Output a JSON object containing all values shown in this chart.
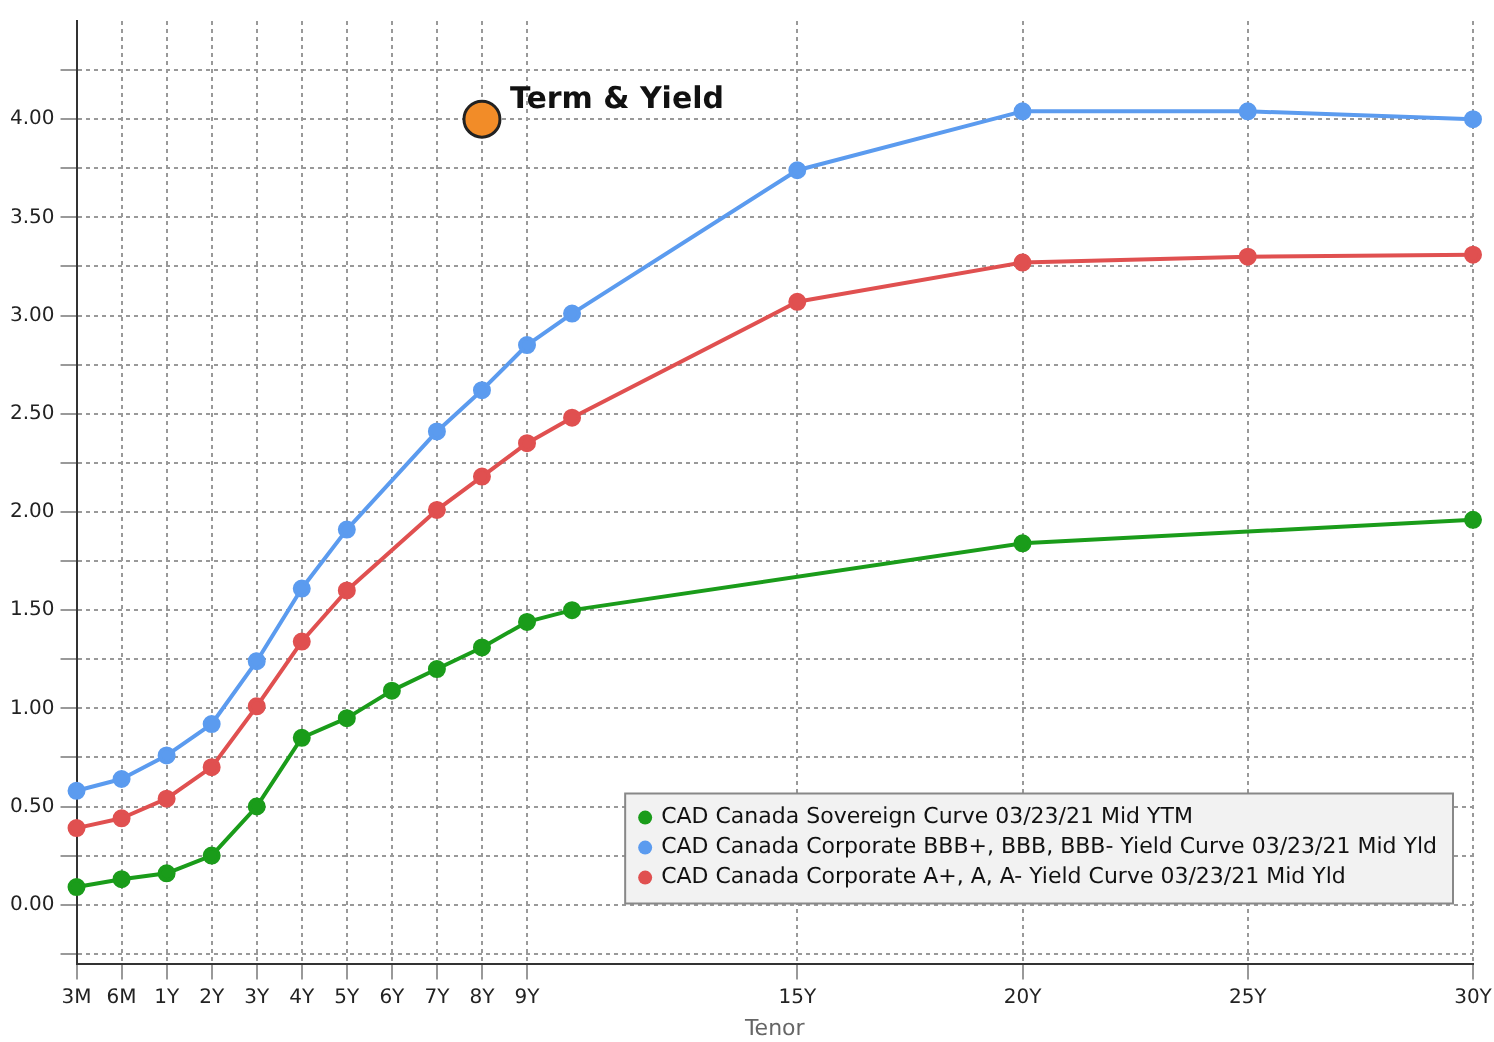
{
  "chart_data": {
    "type": "line",
    "xlabel": "Tenor",
    "categories": [
      "3M",
      "6M",
      "1Y",
      "2Y",
      "3Y",
      "4Y",
      "5Y",
      "6Y",
      "7Y",
      "8Y",
      "9Y",
      null,
      null,
      null,
      null,
      null,
      "15Y",
      null,
      null,
      null,
      null,
      "20Y",
      null,
      null,
      null,
      null,
      "25Y",
      null,
      null,
      null,
      null,
      "30Y"
    ],
    "series": [
      {
        "name": "CAD Canada Sovereign Curve 03/23/21 Mid YTM",
        "color": "#1a9c1a",
        "values": [
          0.09,
          0.13,
          0.16,
          0.25,
          0.5,
          0.85,
          0.95,
          1.09,
          1.2,
          1.31,
          1.44,
          1.5,
          null,
          null,
          null,
          null,
          null,
          null,
          null,
          null,
          null,
          1.84,
          null,
          null,
          null,
          null,
          null,
          null,
          null,
          null,
          null,
          1.96
        ]
      },
      {
        "name": "CAD Canada Corporate BBB+, BBB, BBB- Yield Curve 03/23/21 Mid Yld",
        "color": "#5b9bef",
        "values": [
          0.58,
          0.64,
          0.76,
          0.92,
          1.24,
          1.61,
          1.91,
          null,
          2.41,
          2.62,
          2.85,
          3.01,
          null,
          null,
          null,
          null,
          3.74,
          null,
          null,
          null,
          null,
          4.04,
          null,
          null,
          null,
          null,
          4.04,
          null,
          null,
          null,
          null,
          4.0
        ]
      },
      {
        "name": "CAD Canada Corporate A+, A, A- Yield Curve 03/23/21 Mid Yld",
        "color": "#e05050",
        "values": [
          0.39,
          0.44,
          0.54,
          0.7,
          1.01,
          1.34,
          1.6,
          null,
          2.01,
          2.18,
          2.35,
          2.48,
          null,
          null,
          null,
          null,
          3.07,
          null,
          null,
          null,
          null,
          3.27,
          null,
          null,
          null,
          null,
          3.3,
          null,
          null,
          null,
          null,
          3.31
        ]
      },
      {
        "name": "Term & Yield",
        "type": "scatter",
        "color": "#f28c28",
        "x": [
          "8Y"
        ],
        "values": [
          4.0
        ]
      }
    ],
    "ylim": [
      -0.3,
      4.5
    ],
    "yticks": [
      {
        "value": -0.25,
        "label": null
      },
      {
        "value": 0,
        "label": "0.00"
      },
      {
        "value": 0.25,
        "label": null
      },
      {
        "value": 0.5,
        "label": "0.50"
      },
      {
        "value": 0.75,
        "label": null
      },
      {
        "value": 1,
        "label": "1.00"
      },
      {
        "value": 1.25,
        "label": null
      },
      {
        "value": 1.5,
        "label": "1.50"
      },
      {
        "value": 1.75,
        "label": null
      },
      {
        "value": 2,
        "label": "2.00"
      },
      {
        "value": 2.25,
        "label": null
      },
      {
        "value": 2.5,
        "label": "2.50"
      },
      {
        "value": 2.75,
        "label": null
      },
      {
        "value": 3,
        "label": "3.00"
      },
      {
        "value": 3.25,
        "label": null
      },
      {
        "value": 3.5,
        "label": "3.50"
      },
      {
        "value": 3.75,
        "label": null
      },
      {
        "value": 4,
        "label": "4.00"
      },
      {
        "value": 4.25,
        "label": null
      }
    ],
    "grid": true,
    "legend": "bottom right",
    "marker": "circle"
  }
}
